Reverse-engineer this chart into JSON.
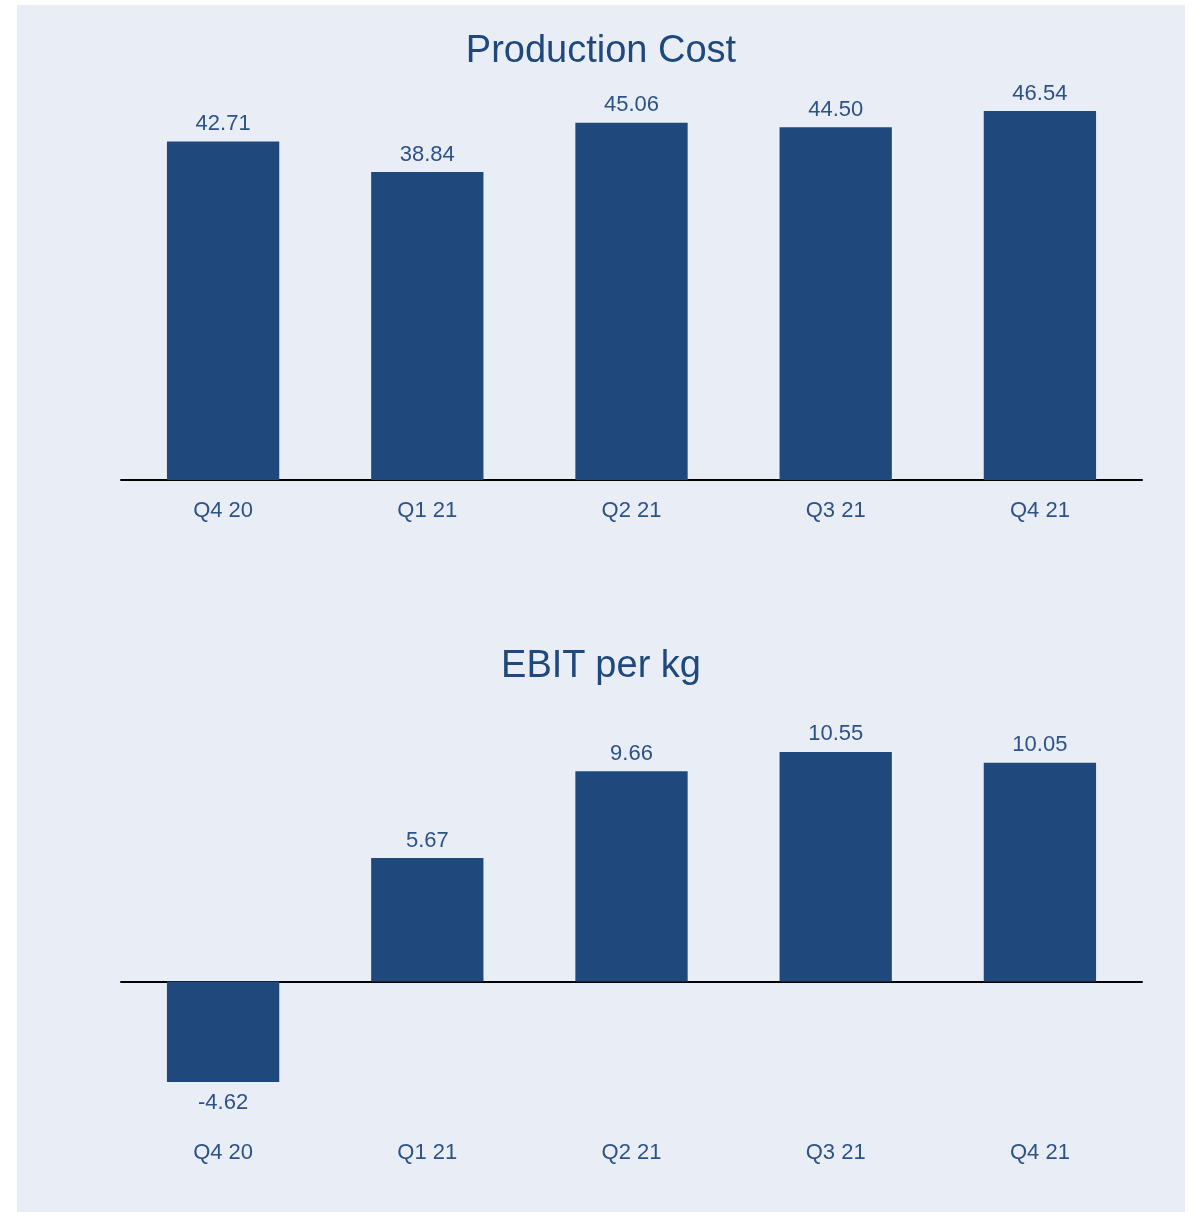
{
  "chart_data": [
    {
      "type": "bar",
      "title": "Production Cost",
      "categories": [
        "Q4 20",
        "Q1 21",
        "Q2 21",
        "Q3 21",
        "Q4 21"
      ],
      "values": [
        42.71,
        38.84,
        45.06,
        44.5,
        46.54
      ],
      "value_labels": [
        "42.71",
        "38.84",
        "45.06",
        "44.50",
        "46.54"
      ],
      "color": "#1f497d"
    },
    {
      "type": "bar",
      "title": "EBIT per kg",
      "categories": [
        "Q4 20",
        "Q1 21",
        "Q2 21",
        "Q3 21",
        "Q4 21"
      ],
      "values": [
        -4.62,
        5.67,
        9.66,
        10.55,
        10.05
      ],
      "value_labels": [
        "-4.62",
        "5.67",
        "9.66",
        "10.55",
        "10.05"
      ],
      "color": "#1f497d"
    }
  ]
}
